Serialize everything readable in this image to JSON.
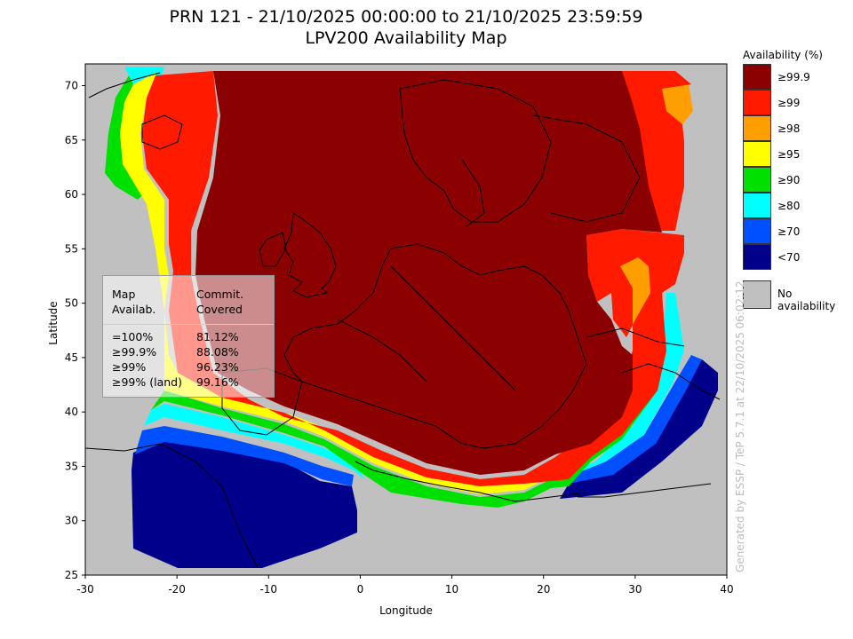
{
  "title": {
    "line1": "PRN 121 - 21/10/2025 00:00:00 to 21/10/2025 23:59:59",
    "line2": "LPV200 Availability Map"
  },
  "axes": {
    "xlabel": "Longitude",
    "ylabel": "Latitude",
    "x_ticks": [
      -30,
      -20,
      -10,
      0,
      10,
      20,
      30,
      40
    ],
    "y_ticks": [
      25,
      30,
      35,
      40,
      45,
      50,
      55,
      60,
      65,
      70
    ],
    "xlim": [
      -30,
      40
    ],
    "ylim": [
      25,
      72
    ]
  },
  "legend": {
    "title": "Availability (%)",
    "items": [
      {
        "label": "≥99.9",
        "color": "#8b0000"
      },
      {
        "label": "≥99",
        "color": "#ff1a00"
      },
      {
        "label": "≥98",
        "color": "#ff9e00"
      },
      {
        "label": "≥95",
        "color": "#ffff00"
      },
      {
        "label": "≥90",
        "color": "#00e000"
      },
      {
        "label": "≥80",
        "color": "#00ffff"
      },
      {
        "label": "≥70",
        "color": "#0050ff"
      },
      {
        "label": "<70",
        "color": "#00008b"
      }
    ],
    "no_availability": {
      "label": "No availability",
      "color": "#c0c0c0"
    }
  },
  "stats_box": {
    "header_left": [
      "Map",
      "Availab."
    ],
    "header_right": [
      "Commit.",
      "Covered"
    ],
    "rows": [
      {
        "availability": "=100%",
        "covered": "81.12%"
      },
      {
        "availability": "≥99.9%",
        "covered": "88.08%"
      },
      {
        "availability": "≥99%",
        "covered": "96.23%"
      },
      {
        "availability": "≥99% (land)",
        "covered": "99.16%"
      }
    ]
  },
  "credit": "Generated by ESSP / TeP 5.7.1 at 22/10/2025 06:02:12"
}
